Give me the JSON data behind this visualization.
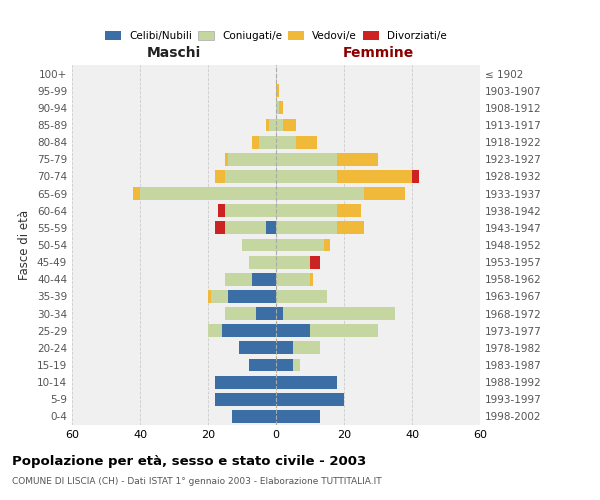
{
  "age_groups": [
    "0-4",
    "5-9",
    "10-14",
    "15-19",
    "20-24",
    "25-29",
    "30-34",
    "35-39",
    "40-44",
    "45-49",
    "50-54",
    "55-59",
    "60-64",
    "65-69",
    "70-74",
    "75-79",
    "80-84",
    "85-89",
    "90-94",
    "95-99",
    "100+"
  ],
  "birth_years": [
    "1998-2002",
    "1993-1997",
    "1988-1992",
    "1983-1987",
    "1978-1982",
    "1973-1977",
    "1968-1972",
    "1963-1967",
    "1958-1962",
    "1953-1957",
    "1948-1952",
    "1943-1947",
    "1938-1942",
    "1933-1937",
    "1928-1932",
    "1923-1927",
    "1918-1922",
    "1913-1917",
    "1908-1912",
    "1903-1907",
    "≤ 1902"
  ],
  "colors": {
    "celibi": "#3a6ea5",
    "coniugati": "#c5d6a0",
    "vedovi": "#f0b93a",
    "divorziati": "#cc2222"
  },
  "males": {
    "celibi": [
      13,
      18,
      18,
      8,
      11,
      16,
      6,
      14,
      7,
      0,
      0,
      3,
      0,
      0,
      0,
      0,
      0,
      0,
      0,
      0,
      0
    ],
    "coniugati": [
      0,
      0,
      0,
      0,
      0,
      4,
      9,
      5,
      8,
      8,
      10,
      12,
      15,
      40,
      15,
      14,
      5,
      2,
      0,
      0,
      0
    ],
    "vedovi": [
      0,
      0,
      0,
      0,
      0,
      0,
      0,
      1,
      0,
      0,
      0,
      0,
      0,
      2,
      3,
      1,
      2,
      1,
      0,
      0,
      0
    ],
    "divorziati": [
      0,
      0,
      0,
      0,
      0,
      0,
      0,
      0,
      0,
      0,
      0,
      3,
      2,
      0,
      0,
      0,
      0,
      0,
      0,
      0,
      0
    ]
  },
  "females": {
    "celibi": [
      13,
      20,
      18,
      5,
      5,
      10,
      2,
      0,
      0,
      0,
      0,
      0,
      0,
      0,
      0,
      0,
      0,
      0,
      0,
      0,
      0
    ],
    "coniugati": [
      0,
      0,
      0,
      2,
      8,
      20,
      33,
      15,
      10,
      10,
      14,
      18,
      18,
      26,
      18,
      18,
      6,
      2,
      1,
      0,
      0
    ],
    "vedovi": [
      0,
      0,
      0,
      0,
      0,
      0,
      0,
      0,
      1,
      0,
      2,
      8,
      7,
      12,
      22,
      12,
      6,
      4,
      1,
      1,
      0
    ],
    "divorziati": [
      0,
      0,
      0,
      0,
      0,
      0,
      0,
      0,
      0,
      3,
      0,
      0,
      0,
      0,
      2,
      0,
      0,
      0,
      0,
      0,
      0
    ]
  },
  "xlim": 60,
  "title": "Popolazione per età, sesso e stato civile - 2003",
  "subtitle": "COMUNE DI LISCIA (CH) - Dati ISTAT 1° gennaio 2003 - Elaborazione TUTTITALIA.IT",
  "ylabel_left": "Fasce di età",
  "xlabel_left": "Maschi",
  "xlabel_right": "Femmine",
  "femmine_color": "#8b0000",
  "bg_color": "#f0f0f0",
  "grid_color": "#cccccc"
}
